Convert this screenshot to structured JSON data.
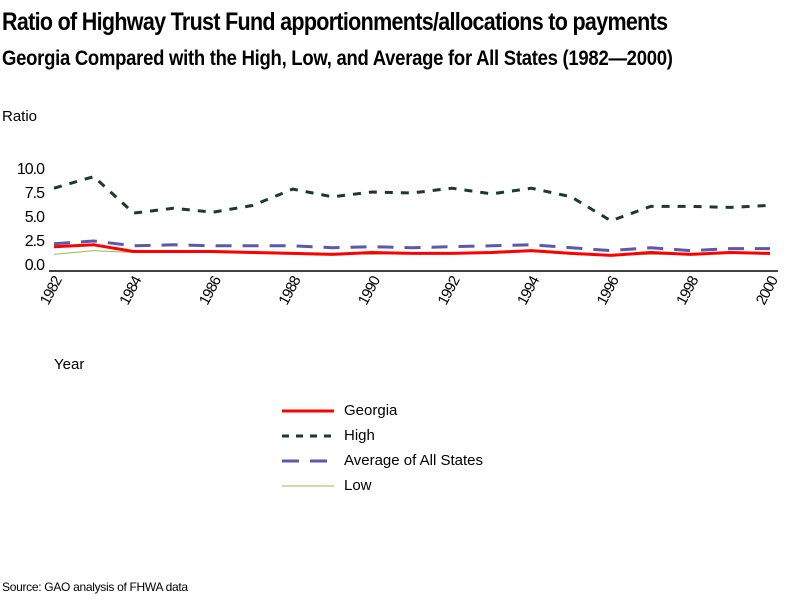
{
  "chart_data": {
    "type": "line",
    "title": "Ratio of Highway Trust Fund apportionments/allocations to payments",
    "subtitle": "Georgia Compared with the High, Low, and Average for All States (1982—2000)",
    "xlabel": "Year",
    "ylabel": "Ratio",
    "x": [
      1982,
      1983,
      1984,
      1985,
      1986,
      1987,
      1988,
      1989,
      1990,
      1991,
      1992,
      1993,
      1994,
      1995,
      1996,
      1997,
      1998,
      1999,
      2000
    ],
    "x_tick_labels": [
      "1982",
      "1984",
      "1986",
      "1988",
      "1990",
      "1992",
      "1994",
      "1996",
      "1998",
      "2000"
    ],
    "y_tick_labels": [
      "10.0",
      "7.5",
      "5.0",
      "2.5",
      "0.0"
    ],
    "y_ticks": [
      10.0,
      7.5,
      5.0,
      2.5,
      0.0
    ],
    "ylim": [
      0,
      10
    ],
    "xlim": [
      1982,
      2000
    ],
    "grid": false,
    "legend_placement": "bottom-center",
    "series": [
      {
        "name": "Georgia",
        "color": "#ff0000",
        "style": "solid",
        "values": [
          1.8,
          2.0,
          1.3,
          1.3,
          1.3,
          1.2,
          1.1,
          1.0,
          1.2,
          1.1,
          1.1,
          1.2,
          1.4,
          1.1,
          0.9,
          1.2,
          1.0,
          1.2,
          1.1
        ]
      },
      {
        "name": "High",
        "color": "#1a3a2a",
        "style": "dotted-dash",
        "values": [
          7.9,
          9.1,
          5.3,
          5.8,
          5.4,
          6.1,
          7.8,
          7.0,
          7.5,
          7.4,
          7.9,
          7.3,
          7.9,
          7.0,
          4.5,
          6.0,
          6.0,
          5.9,
          6.1
        ]
      },
      {
        "name": "Average of All States",
        "color": "#5a5aaa",
        "style": "long-dash",
        "values": [
          2.1,
          2.4,
          1.9,
          2.0,
          1.9,
          1.9,
          1.9,
          1.7,
          1.8,
          1.7,
          1.8,
          1.9,
          2.0,
          1.7,
          1.4,
          1.7,
          1.4,
          1.6,
          1.6
        ]
      },
      {
        "name": "Low",
        "color": "#a0b850",
        "style": "solid-thin",
        "values": [
          1.0,
          1.4,
          1.2,
          1.2,
          1.2,
          1.1,
          1.0,
          1.1,
          1.0,
          1.1,
          1.1,
          1.1,
          1.3,
          1.0,
          0.9,
          1.0,
          1.0,
          1.1,
          1.0
        ]
      }
    ],
    "source": "Source: GAO analysis of FHWA data"
  }
}
